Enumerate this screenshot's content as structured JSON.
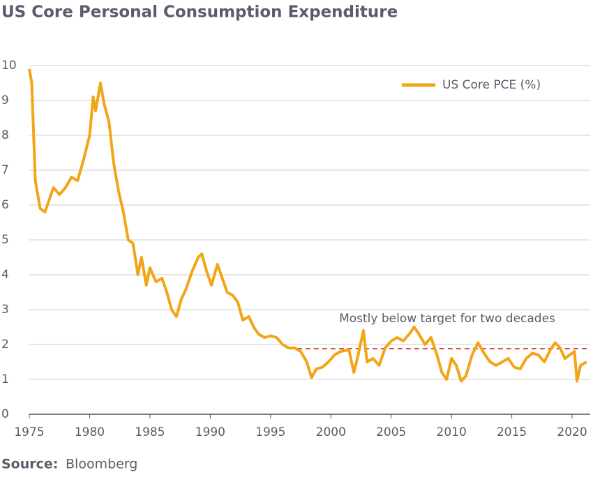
{
  "chart_data": {
    "type": "line",
    "title": "US Core Personal Consumption Expenditure",
    "source_label": "Source:",
    "source": "Bloomberg",
    "annotation": "Mostly below target for two decades",
    "reference_line": {
      "y": 1.88,
      "xstart": 1997.2,
      "xend": 2021.2,
      "color": "#d9534f"
    },
    "xlim": [
      1975,
      2021.5
    ],
    "ylim": [
      0,
      10
    ],
    "xticks": [
      1975,
      1980,
      1985,
      1990,
      1995,
      2000,
      2005,
      2010,
      2015,
      2020
    ],
    "yticks": [
      0,
      1,
      2,
      3,
      4,
      5,
      6,
      7,
      8,
      9,
      10
    ],
    "grid": true,
    "legend": "upper right",
    "x": [
      1975.0,
      1975.2,
      1975.5,
      1975.9,
      1976.3,
      1976.6,
      1977.0,
      1977.5,
      1978.0,
      1978.5,
      1979.0,
      1979.5,
      1980.0,
      1980.3,
      1980.5,
      1980.9,
      1981.2,
      1981.6,
      1982.0,
      1982.4,
      1982.8,
      1983.2,
      1983.6,
      1984.0,
      1984.3,
      1984.7,
      1985.0,
      1985.5,
      1986.0,
      1986.4,
      1986.8,
      1987.2,
      1987.6,
      1988.0,
      1988.5,
      1989.0,
      1989.3,
      1989.7,
      1990.1,
      1990.6,
      1991.0,
      1991.4,
      1991.9,
      1992.3,
      1992.7,
      1993.2,
      1993.6,
      1994.0,
      1994.5,
      1995.0,
      1995.5,
      1996.0,
      1996.5,
      1997.0,
      1997.5,
      1998.0,
      1998.4,
      1998.8,
      1999.3,
      1999.8,
      2000.3,
      2000.8,
      2001.5,
      2001.9,
      2002.2,
      2002.7,
      2003.0,
      2003.5,
      2004.0,
      2004.5,
      2005.0,
      2005.5,
      2006.0,
      2006.5,
      2006.9,
      2007.3,
      2007.8,
      2008.3,
      2008.8,
      2009.2,
      2009.6,
      2010.0,
      2010.4,
      2010.8,
      2011.2,
      2011.7,
      2012.2,
      2012.7,
      2013.2,
      2013.7,
      2014.2,
      2014.7,
      2015.2,
      2015.7,
      2016.2,
      2016.7,
      2017.2,
      2017.7,
      2018.2,
      2018.6,
      2019.0,
      2019.4,
      2019.8,
      2020.2,
      2020.4,
      2020.7,
      2021.2
    ],
    "series": [
      {
        "name": "US Core PCE (%)",
        "color": "#f2a516",
        "values": [
          9.9,
          9.5,
          6.7,
          5.9,
          5.8,
          6.1,
          6.5,
          6.3,
          6.5,
          6.8,
          6.7,
          7.3,
          8.0,
          9.1,
          8.7,
          9.5,
          8.9,
          8.4,
          7.2,
          6.4,
          5.8,
          5.0,
          4.9,
          4.0,
          4.5,
          3.7,
          4.2,
          3.8,
          3.9,
          3.5,
          3.0,
          2.8,
          3.3,
          3.6,
          4.1,
          4.5,
          4.6,
          4.1,
          3.7,
          4.3,
          3.9,
          3.5,
          3.4,
          3.2,
          2.7,
          2.8,
          2.5,
          2.3,
          2.2,
          2.25,
          2.2,
          2.0,
          1.9,
          1.9,
          1.8,
          1.5,
          1.05,
          1.3,
          1.35,
          1.5,
          1.7,
          1.8,
          1.85,
          1.2,
          1.6,
          2.4,
          1.5,
          1.6,
          1.4,
          1.9,
          2.1,
          2.2,
          2.1,
          2.3,
          2.5,
          2.3,
          2.0,
          2.2,
          1.7,
          1.2,
          1.0,
          1.6,
          1.4,
          0.95,
          1.1,
          1.7,
          2.05,
          1.75,
          1.5,
          1.4,
          1.5,
          1.6,
          1.35,
          1.3,
          1.6,
          1.75,
          1.7,
          1.5,
          1.85,
          2.05,
          1.9,
          1.6,
          1.7,
          1.8,
          0.95,
          1.4,
          1.5
        ]
      }
    ]
  }
}
